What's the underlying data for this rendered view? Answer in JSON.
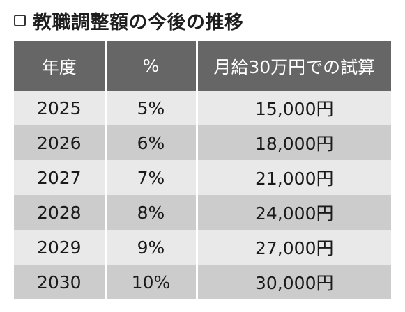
{
  "title": {
    "icon": "checkbox-icon",
    "text": "教職調整額の今後の推移"
  },
  "table": {
    "headers": [
      "年度",
      "%",
      "月給30万円での試算"
    ],
    "rows": [
      {
        "year": "2025",
        "rate": "5%",
        "amount": "15,000円"
      },
      {
        "year": "2026",
        "rate": "6%",
        "amount": "18,000円"
      },
      {
        "year": "2027",
        "rate": "7%",
        "amount": "21,000円"
      },
      {
        "year": "2028",
        "rate": "8%",
        "amount": "24,000円"
      },
      {
        "year": "2029",
        "rate": "9%",
        "amount": "27,000円"
      },
      {
        "year": "2030",
        "rate": "10%",
        "amount": "30,000円"
      }
    ]
  },
  "colors": {
    "header_bg": "#666666",
    "header_text": "#ffffff",
    "row_light": "#e9e9e9",
    "row_dark": "#cccccc",
    "text": "#1a1a1a"
  }
}
